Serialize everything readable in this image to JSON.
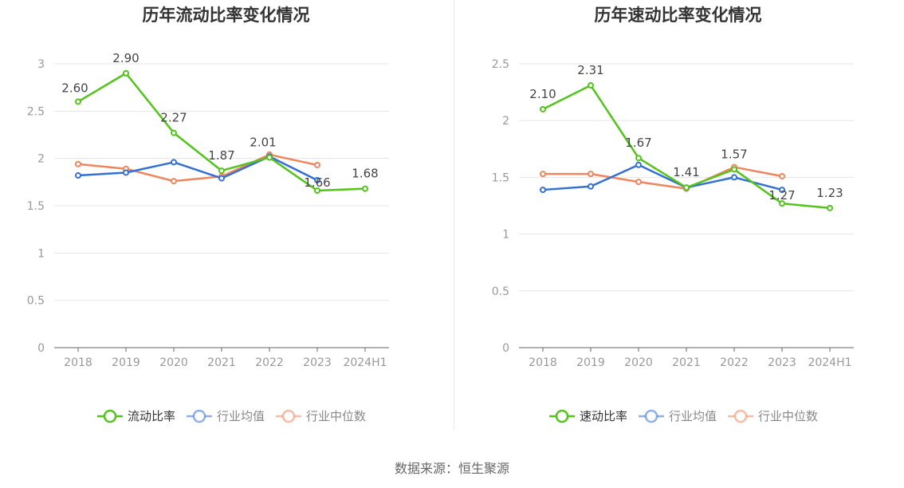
{
  "footer": {
    "source": "数据来源：恒生聚源"
  },
  "chart_data": [
    {
      "type": "line",
      "title": "历年流动比率变化情况",
      "categories": [
        "2018",
        "2019",
        "2020",
        "2021",
        "2022",
        "2023",
        "2024H1"
      ],
      "ylim": [
        0,
        3
      ],
      "yticks": [
        0,
        0.5,
        1,
        1.5,
        2,
        2.5,
        3
      ],
      "ytick_labels": [
        "0",
        "0.5",
        "1",
        "1.5",
        "2",
        "2.5",
        "3"
      ],
      "grid": true,
      "legend": "bottom",
      "series": [
        {
          "name": "流动比率",
          "color": "#52c41a",
          "values": [
            2.6,
            2.9,
            2.27,
            1.87,
            2.01,
            1.66,
            1.68
          ],
          "labels": [
            "2.60",
            "2.90",
            "2.27",
            "1.87",
            "2.01",
            "1.66",
            "1.68"
          ]
        },
        {
          "name": "行业均值",
          "color": "#3370d6",
          "values": [
            1.82,
            1.85,
            1.96,
            1.79,
            2.02,
            1.77,
            null
          ]
        },
        {
          "name": "行业中位数",
          "color": "#f0845c",
          "values": [
            1.94,
            1.89,
            1.76,
            1.81,
            2.04,
            1.93,
            null
          ]
        }
      ]
    },
    {
      "type": "line",
      "title": "历年速动比率变化情况",
      "categories": [
        "2018",
        "2019",
        "2020",
        "2021",
        "2022",
        "2023",
        "2024H1"
      ],
      "ylim": [
        0,
        2.5
      ],
      "yticks": [
        0,
        0.5,
        1,
        1.5,
        2,
        2.5
      ],
      "ytick_labels": [
        "0",
        "0.5",
        "1",
        "1.5",
        "2",
        "2.5"
      ],
      "grid": true,
      "legend": "bottom",
      "series": [
        {
          "name": "速动比率",
          "color": "#52c41a",
          "values": [
            2.1,
            2.31,
            1.67,
            1.41,
            1.57,
            1.27,
            1.23
          ],
          "labels": [
            "2.10",
            "2.31",
            "1.67",
            "1.41",
            "1.57",
            "1.27",
            "1.23"
          ]
        },
        {
          "name": "行业均值",
          "color": "#3370d6",
          "values": [
            1.39,
            1.42,
            1.61,
            1.41,
            1.5,
            1.39,
            null
          ]
        },
        {
          "name": "行业中位数",
          "color": "#f0845c",
          "values": [
            1.53,
            1.53,
            1.46,
            1.4,
            1.59,
            1.51,
            null
          ]
        }
      ]
    }
  ]
}
